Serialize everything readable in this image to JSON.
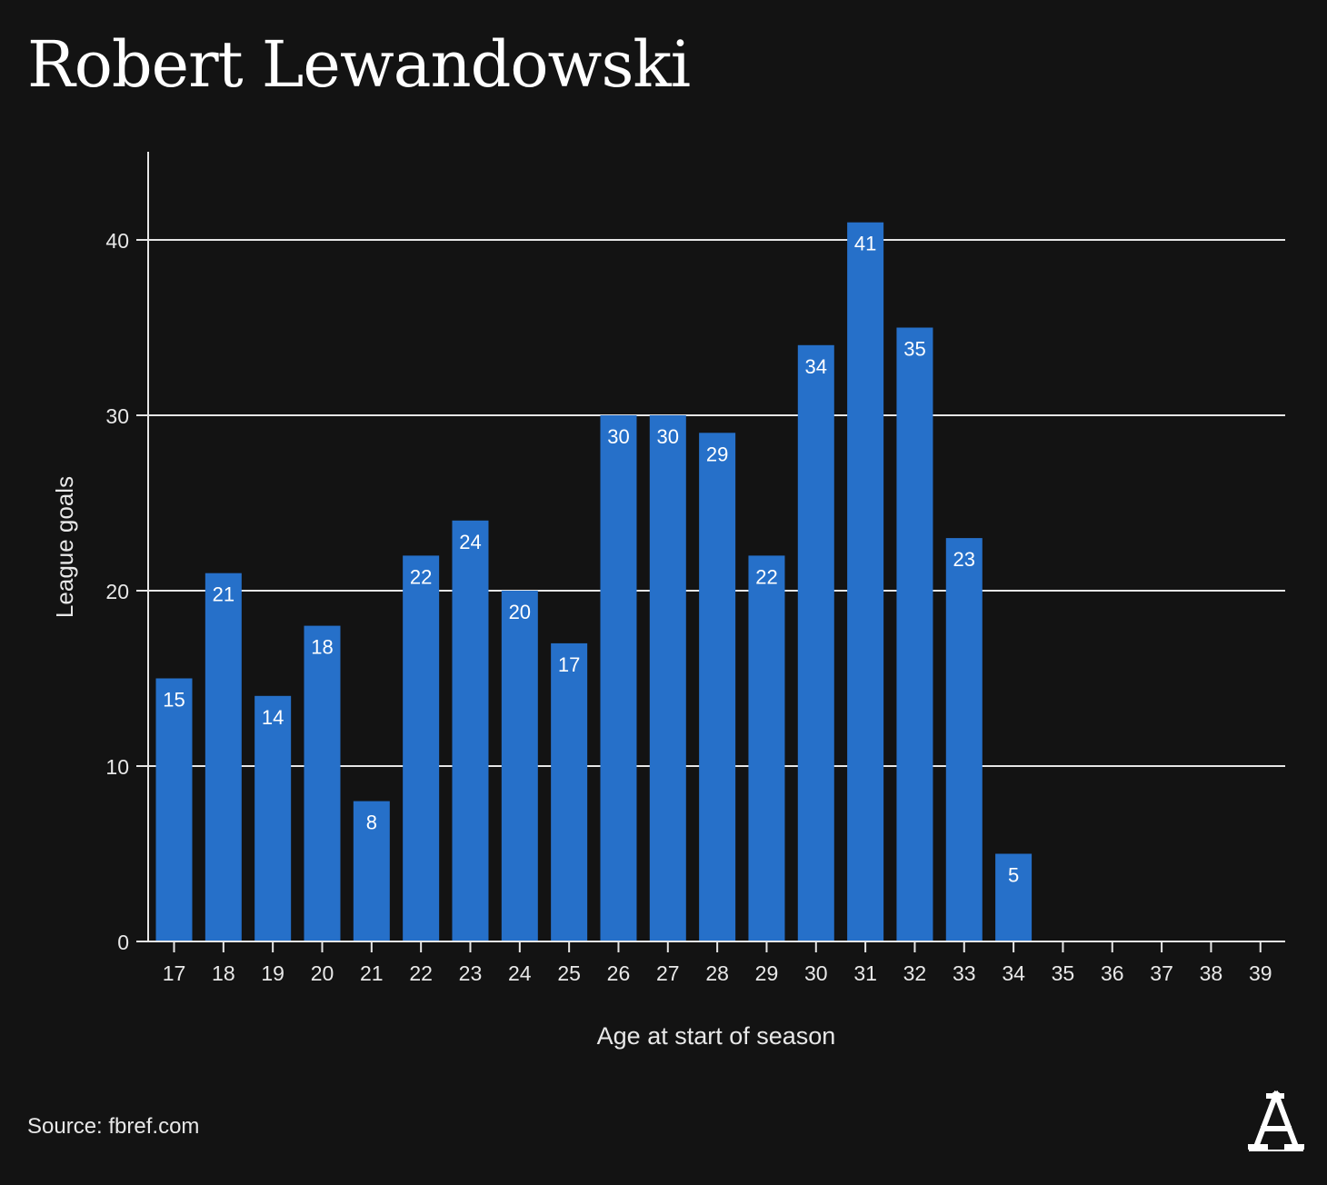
{
  "header": {
    "title": "Robert Lewandowski"
  },
  "footer": {
    "source": "Source: fbref.com",
    "logo_icon": "athletic-logo-icon"
  },
  "colors": {
    "background": "#131313",
    "bar": "#2670c9",
    "grid": "#e6e6e6",
    "text": "#e8e8e8"
  },
  "chart_data": {
    "type": "bar",
    "title": "Robert Lewandowski",
    "xlabel": "Age at start of season",
    "ylabel": "League goals",
    "ylim": [
      0,
      45
    ],
    "yticks": [
      0,
      10,
      20,
      30,
      40
    ],
    "grid": true,
    "categories": [
      "17",
      "18",
      "19",
      "20",
      "21",
      "22",
      "23",
      "24",
      "25",
      "26",
      "27",
      "28",
      "29",
      "30",
      "31",
      "32",
      "33",
      "34",
      "35",
      "36",
      "37",
      "38",
      "39"
    ],
    "values": [
      15,
      21,
      14,
      18,
      8,
      22,
      24,
      20,
      17,
      30,
      30,
      29,
      22,
      34,
      41,
      35,
      23,
      5,
      null,
      null,
      null,
      null,
      null
    ]
  }
}
